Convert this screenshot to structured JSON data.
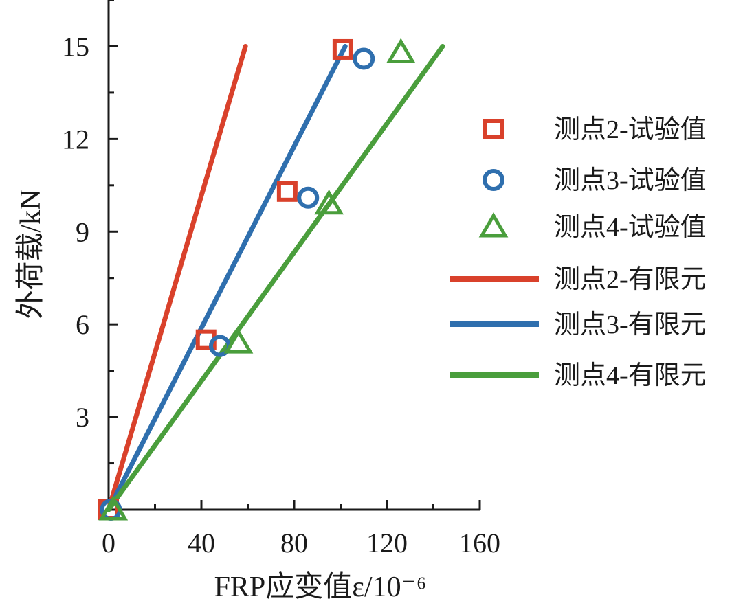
{
  "chart_data": {
    "type": "scatter",
    "xlabel": "FRP应变值ε/10⁻⁶",
    "ylabel": "外荷载/kN",
    "xlim": [
      0,
      160
    ],
    "ylim": [
      0,
      16.5
    ],
    "x_ticks": [
      0,
      40,
      80,
      120,
      160
    ],
    "x_tick_labels": [
      "0",
      "40",
      "80",
      "120",
      "160"
    ],
    "y_ticks": [
      3,
      6,
      9,
      12,
      15
    ],
    "y_tick_labels": [
      "3",
      "6",
      "9",
      "12",
      "15"
    ],
    "grid": false,
    "legend_position": "right",
    "series": [
      {
        "name": "测点2-试验值",
        "kind": "marker",
        "marker": "square",
        "color": "#d9412b",
        "points": [
          [
            0,
            0
          ],
          [
            42,
            5.5
          ],
          [
            77,
            10.3
          ],
          [
            101,
            14.9
          ]
        ]
      },
      {
        "name": "测点3-试验值",
        "kind": "marker",
        "marker": "circle",
        "color": "#2f6fae",
        "points": [
          [
            1,
            0
          ],
          [
            48,
            5.3
          ],
          [
            86,
            10.1
          ],
          [
            110,
            14.6
          ]
        ]
      },
      {
        "name": "测点4-试验值",
        "kind": "marker",
        "marker": "triangle",
        "color": "#4a9e3c",
        "points": [
          [
            2,
            0
          ],
          [
            56,
            5.4
          ],
          [
            95,
            9.9
          ],
          [
            126,
            14.8
          ]
        ]
      },
      {
        "name": "测点2-有限元",
        "kind": "line",
        "color": "#d9412b",
        "points": [
          [
            0,
            0
          ],
          [
            59,
            15
          ]
        ]
      },
      {
        "name": "测点3-有限元",
        "kind": "line",
        "color": "#2f6fae",
        "points": [
          [
            0,
            0
          ],
          [
            102,
            15
          ]
        ]
      },
      {
        "name": "测点4-有限元",
        "kind": "line",
        "color": "#4a9e3c",
        "points": [
          [
            0,
            0
          ],
          [
            144,
            15
          ]
        ]
      }
    ]
  }
}
